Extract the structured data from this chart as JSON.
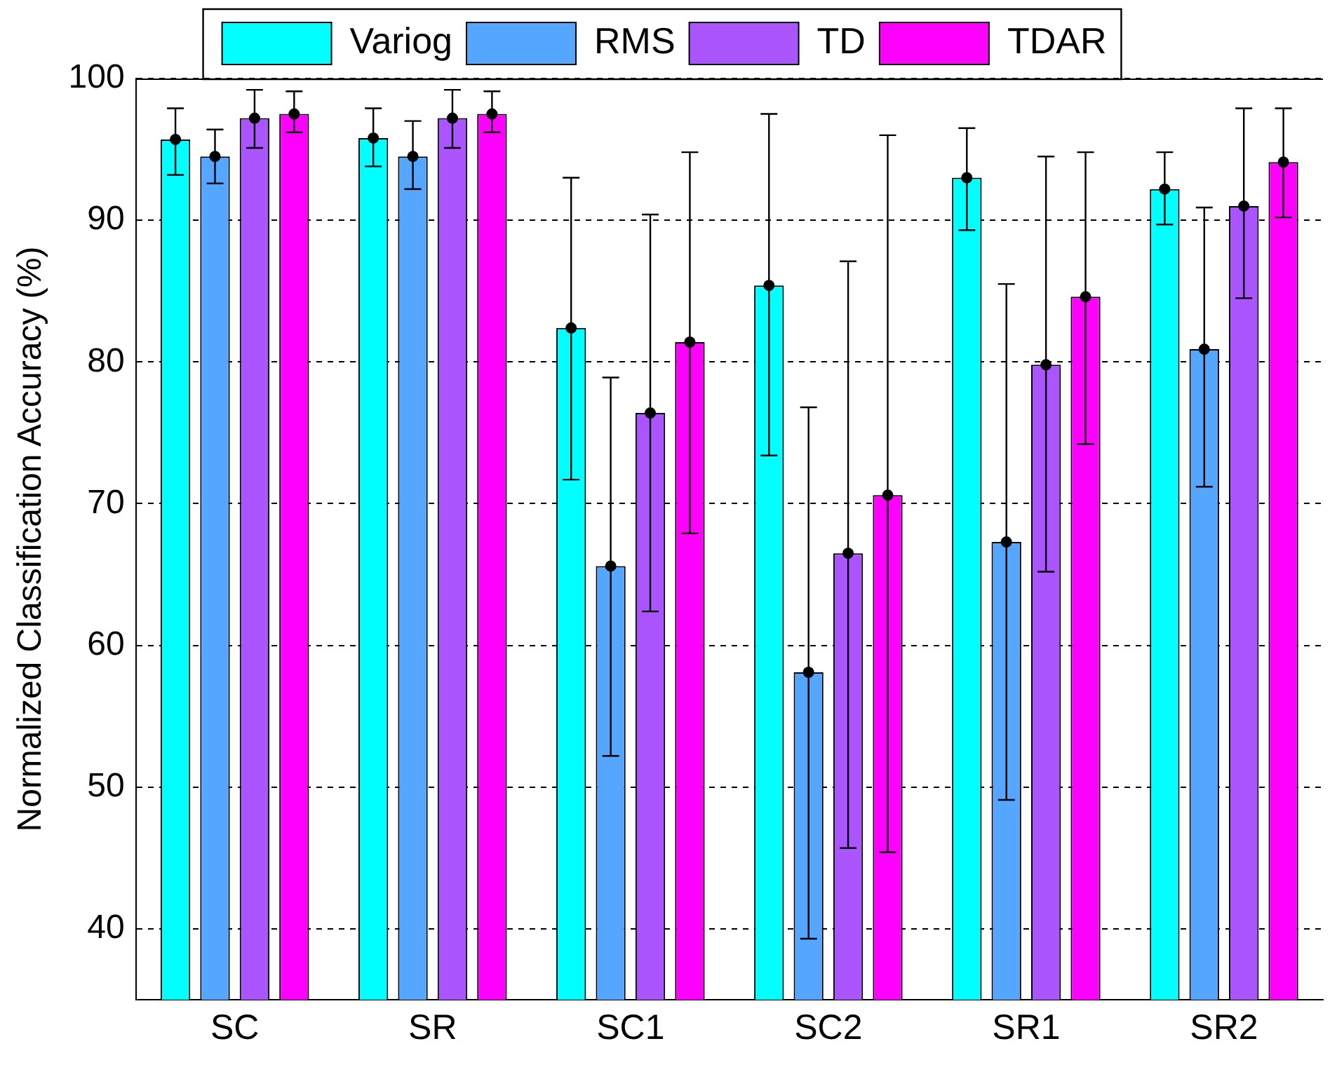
{
  "chart_data": {
    "type": "bar",
    "ylabel": "Normalized Classification Accuracy (%)",
    "categories": [
      "SC",
      "SR",
      "SC1",
      "SC2",
      "SR1",
      "SR2"
    ],
    "series": [
      {
        "name": "Variog",
        "color": "#00ffff",
        "values": [
          95.7,
          95.8,
          82.4,
          85.4,
          93.0,
          92.2
        ],
        "errors": [
          [
            93.2,
            97.9
          ],
          [
            93.8,
            97.9
          ],
          [
            71.7,
            93.0
          ],
          [
            73.4,
            97.5
          ],
          [
            89.3,
            96.5
          ],
          [
            89.7,
            94.8
          ]
        ]
      },
      {
        "name": "RMS",
        "color": "#55a6ff",
        "values": [
          94.5,
          94.5,
          65.6,
          58.1,
          67.3,
          80.9
        ],
        "errors": [
          [
            92.6,
            96.4
          ],
          [
            92.2,
            97.0
          ],
          [
            52.2,
            78.9
          ],
          [
            39.3,
            76.8
          ],
          [
            49.1,
            85.5
          ],
          [
            71.2,
            90.9
          ]
        ]
      },
      {
        "name": "TD",
        "color": "#aa55ff",
        "values": [
          97.2,
          97.2,
          76.4,
          66.5,
          79.8,
          91.0
        ],
        "errors": [
          [
            95.1,
            99.2
          ],
          [
            95.1,
            99.2
          ],
          [
            62.4,
            90.4
          ],
          [
            45.7,
            87.1
          ],
          [
            65.2,
            94.5
          ],
          [
            84.5,
            97.9
          ]
        ]
      },
      {
        "name": "TDAR",
        "color": "#ff00ff",
        "values": [
          97.5,
          97.5,
          81.4,
          70.6,
          84.6,
          94.1
        ],
        "errors": [
          [
            96.2,
            99.1
          ],
          [
            96.2,
            99.1
          ],
          [
            67.9,
            94.8
          ],
          [
            45.4,
            96.0
          ],
          [
            74.2,
            94.8
          ],
          [
            90.2,
            97.9
          ]
        ]
      },
      {
        "type": "scatter",
        "color": "#000000",
        "x": [
          "SC",
          "SR",
          "SC1",
          "SC2",
          "SR1",
          "SR2"
        ],
        "values": [
          95.7,
          95.8,
          82.4,
          85.4,
          93.0,
          92.2
        ]
      },
      {
        "type": "scatter",
        "color": "#000000",
        "x": [
          "SC",
          "SR",
          "SC1",
          "SC2",
          "SR1",
          "SR2"
        ],
        "values": [
          94.5,
          94.5,
          65.6,
          58.1,
          67.3,
          80.9
        ]
      },
      {
        "type": "scatter",
        "color": "#000000",
        "x": [
          "SC",
          "SR",
          "SC1",
          "SC2",
          "SR1",
          "SR2"
        ],
        "values": [
          97.2,
          97.2,
          76.4,
          66.5,
          79.8,
          91.0
        ]
      },
      {
        "type": "scatter",
        "color": "#000000",
        "x": [
          "SC",
          "SR",
          "SC1",
          "SC2",
          "SR1",
          "SR2"
        ],
        "values": [
          97.5,
          97.5,
          81.4,
          70.6,
          84.6,
          94.1
        ]
      }
    ],
    "ylim": [
      35,
      100
    ],
    "yticks": [
      40,
      50,
      60,
      70,
      80,
      90,
      100
    ],
    "grid": "y",
    "legend": "top",
    "marker": "circle"
  }
}
